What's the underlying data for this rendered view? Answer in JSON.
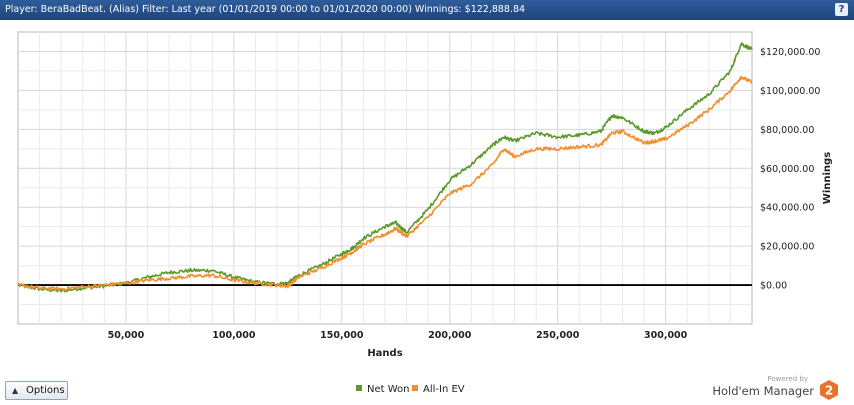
{
  "header": {
    "title": "Player: BeraBadBeat. (Alias) Filter: Last year (01/01/2019 00:00 to 01/01/2020 00:00) Winnings: $122,888.84",
    "help_label": "?"
  },
  "chart_data": {
    "type": "line",
    "xlabel": "Hands",
    "ylabel": "Winnings",
    "xlim": [
      0,
      340000
    ],
    "ylim": [
      -20000,
      130000
    ],
    "x_ticks": [
      50000,
      100000,
      150000,
      200000,
      250000,
      300000
    ],
    "x_tick_labels": [
      "50,000",
      "100,000",
      "150,000",
      "200,000",
      "250,000",
      "300,000"
    ],
    "y_ticks": [
      0,
      20000,
      40000,
      60000,
      80000,
      100000,
      120000
    ],
    "y_tick_labels": [
      "$0.00",
      "$20,000.00",
      "$40,000.00",
      "$60,000.00",
      "$80,000.00",
      "$100,000.00",
      "$120,000.00"
    ],
    "grid": true,
    "legend_position": "bottom-center",
    "series": [
      {
        "name": "Net Won",
        "color": "#5a9a2c",
        "x": [
          0,
          10000,
          20000,
          30000,
          40000,
          50000,
          60000,
          70000,
          80000,
          90000,
          100000,
          110000,
          120000,
          125000,
          130000,
          140000,
          150000,
          155000,
          160000,
          170000,
          175000,
          180000,
          190000,
          200000,
          210000,
          220000,
          225000,
          230000,
          240000,
          250000,
          260000,
          270000,
          275000,
          280000,
          290000,
          295000,
          300000,
          310000,
          320000,
          330000,
          335000,
          340000
        ],
        "y": [
          0,
          -2000,
          -3000,
          -1500,
          -500,
          1000,
          4000,
          6500,
          7500,
          7500,
          4000,
          1500,
          500,
          1000,
          5000,
          10000,
          16000,
          19000,
          24000,
          30000,
          32000,
          27000,
          39000,
          54000,
          62000,
          72000,
          76000,
          74000,
          78000,
          76000,
          77000,
          79000,
          87000,
          86000,
          79000,
          78000,
          81000,
          90000,
          98000,
          110000,
          124000,
          121000
        ]
      },
      {
        "name": "All-In EV",
        "color": "#f28f2c",
        "x": [
          0,
          10000,
          20000,
          30000,
          40000,
          50000,
          60000,
          70000,
          80000,
          90000,
          100000,
          110000,
          120000,
          125000,
          130000,
          140000,
          150000,
          155000,
          160000,
          170000,
          175000,
          180000,
          190000,
          200000,
          210000,
          220000,
          225000,
          230000,
          240000,
          250000,
          260000,
          270000,
          275000,
          280000,
          290000,
          295000,
          300000,
          310000,
          320000,
          330000,
          335000,
          340000
        ],
        "y": [
          0,
          -1500,
          -2000,
          -1000,
          0,
          1000,
          2500,
          3500,
          4500,
          5000,
          2500,
          1000,
          0,
          -500,
          4000,
          8500,
          14000,
          17000,
          21000,
          26000,
          29000,
          25000,
          35000,
          47000,
          52000,
          62000,
          70000,
          66000,
          70000,
          70000,
          71000,
          72000,
          78000,
          79000,
          73000,
          74000,
          75000,
          82000,
          90000,
          100000,
          107000,
          104000
        ]
      }
    ]
  },
  "footer": {
    "options_label": "Options",
    "powered_by": "Powered by",
    "brand": "Hold'em Manager"
  }
}
